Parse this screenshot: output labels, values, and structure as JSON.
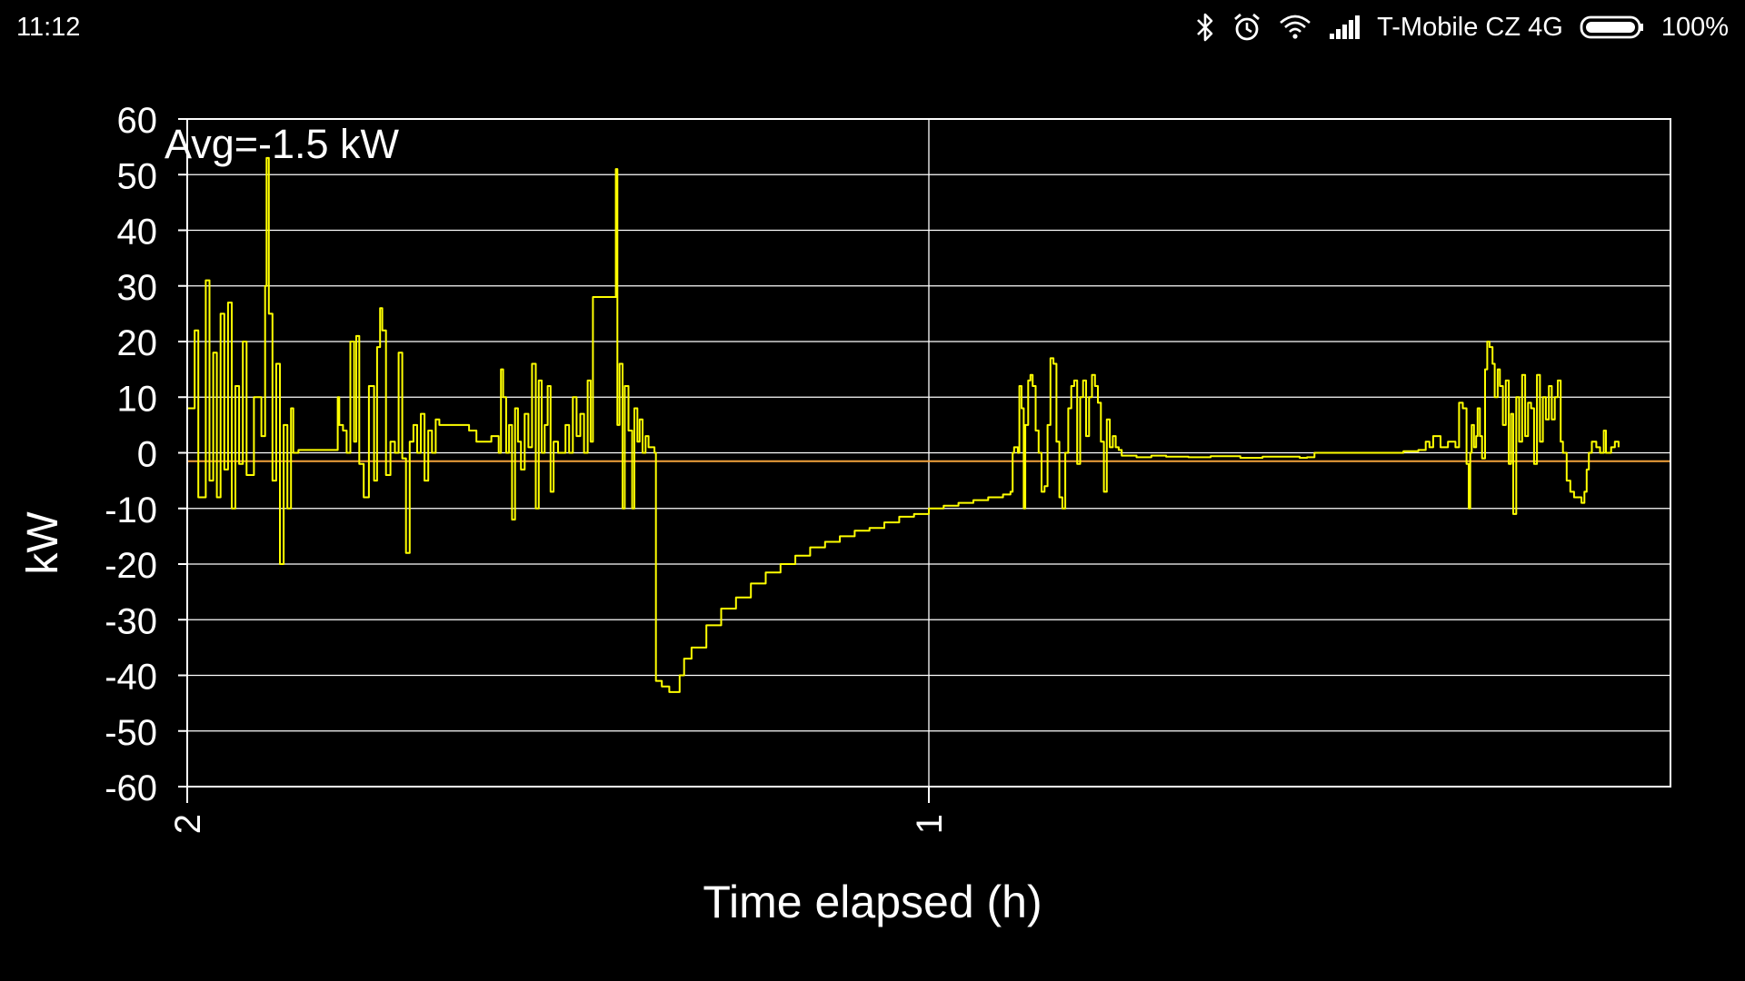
{
  "status_bar": {
    "time": "11:12",
    "carrier": "T-Mobile CZ 4G",
    "battery": "100%",
    "icons": [
      "bluetooth-icon",
      "alarm-icon",
      "wifi-icon",
      "signal-icon",
      "battery-icon"
    ]
  },
  "chart_data": {
    "type": "line",
    "title": "",
    "annotation": "Avg=-1.5 kW",
    "xlabel": "Time elapsed (h)",
    "ylabel": "kW",
    "xlim": [
      2,
      0
    ],
    "ylim": [
      -60,
      60
    ],
    "x_ticks": [
      2,
      1
    ],
    "x_tick_labels": [
      "2",
      "1"
    ],
    "y_ticks": [
      60,
      50,
      40,
      30,
      20,
      10,
      0,
      -10,
      -20,
      -30,
      -40,
      -50,
      -60
    ],
    "y_tick_labels": [
      "60",
      "50",
      "40",
      "30",
      "20",
      "10",
      "0",
      "-10",
      "-20",
      "-30",
      "-40",
      "-50",
      "-60"
    ],
    "grid": true,
    "colors": {
      "series": "#ffff00",
      "average": "#f2a23c",
      "grid": "#ffffff",
      "axis": "#ffffff",
      "background": "#000000"
    },
    "series": [
      {
        "values": [
          [
            2.0,
            8
          ],
          [
            1.99,
            22
          ],
          [
            1.985,
            -8
          ],
          [
            1.975,
            31
          ],
          [
            1.97,
            -5
          ],
          [
            1.965,
            18
          ],
          [
            1.96,
            -8
          ],
          [
            1.955,
            25
          ],
          [
            1.95,
            -3
          ],
          [
            1.945,
            27
          ],
          [
            1.94,
            -10
          ],
          [
            1.935,
            12
          ],
          [
            1.93,
            -2
          ],
          [
            1.925,
            20
          ],
          [
            1.92,
            -4
          ],
          [
            1.91,
            10
          ],
          [
            1.9,
            3
          ],
          [
            1.895,
            30
          ],
          [
            1.893,
            53
          ],
          [
            1.89,
            25
          ],
          [
            1.885,
            -5
          ],
          [
            1.88,
            16
          ],
          [
            1.875,
            -20
          ],
          [
            1.87,
            5
          ],
          [
            1.865,
            -10
          ],
          [
            1.86,
            8
          ],
          [
            1.857,
            0
          ],
          [
            1.85,
            0.5
          ],
          [
            1.8,
            0.5
          ],
          [
            1.797,
            10
          ],
          [
            1.795,
            5
          ],
          [
            1.79,
            4
          ],
          [
            1.785,
            0
          ],
          [
            1.78,
            20
          ],
          [
            1.775,
            2
          ],
          [
            1.772,
            21
          ],
          [
            1.768,
            -2
          ],
          [
            1.762,
            -8
          ],
          [
            1.755,
            12
          ],
          [
            1.748,
            -5
          ],
          [
            1.744,
            19
          ],
          [
            1.74,
            26
          ],
          [
            1.737,
            22
          ],
          [
            1.732,
            -4
          ],
          [
            1.726,
            2
          ],
          [
            1.72,
            0
          ],
          [
            1.715,
            18
          ],
          [
            1.71,
            -1
          ],
          [
            1.705,
            -18
          ],
          [
            1.7,
            2
          ],
          [
            1.695,
            5
          ],
          [
            1.69,
            0
          ],
          [
            1.685,
            7
          ],
          [
            1.68,
            -5
          ],
          [
            1.675,
            4
          ],
          [
            1.67,
            0
          ],
          [
            1.665,
            6
          ],
          [
            1.66,
            5
          ],
          [
            1.64,
            5
          ],
          [
            1.62,
            4
          ],
          [
            1.61,
            2
          ],
          [
            1.6,
            2
          ],
          [
            1.59,
            3
          ],
          [
            1.585,
            3
          ],
          [
            1.58,
            0
          ],
          [
            1.577,
            15
          ],
          [
            1.574,
            10
          ],
          [
            1.57,
            0
          ],
          [
            1.566,
            5
          ],
          [
            1.562,
            -12
          ],
          [
            1.558,
            8
          ],
          [
            1.554,
            2
          ],
          [
            1.55,
            -3
          ],
          [
            1.545,
            7
          ],
          [
            1.54,
            1
          ],
          [
            1.535,
            16
          ],
          [
            1.53,
            -10
          ],
          [
            1.526,
            13
          ],
          [
            1.522,
            0
          ],
          [
            1.518,
            5
          ],
          [
            1.514,
            12
          ],
          [
            1.51,
            -7
          ],
          [
            1.506,
            2
          ],
          [
            1.5,
            0
          ],
          [
            1.49,
            5
          ],
          [
            1.485,
            0
          ],
          [
            1.48,
            10
          ],
          [
            1.475,
            3
          ],
          [
            1.47,
            7
          ],
          [
            1.465,
            0
          ],
          [
            1.46,
            13
          ],
          [
            1.456,
            2
          ],
          [
            1.453,
            28
          ],
          [
            1.422,
            51
          ],
          [
            1.42,
            5
          ],
          [
            1.417,
            16
          ],
          [
            1.413,
            -10
          ],
          [
            1.41,
            12
          ],
          [
            1.405,
            4
          ],
          [
            1.4,
            -10
          ],
          [
            1.397,
            8
          ],
          [
            1.393,
            2
          ],
          [
            1.39,
            6
          ],
          [
            1.386,
            0
          ],
          [
            1.382,
            3
          ],
          [
            1.378,
            1
          ],
          [
            1.37,
            0
          ],
          [
            1.368,
            -41
          ],
          [
            1.36,
            -42
          ],
          [
            1.35,
            -43
          ],
          [
            1.342,
            -43
          ],
          [
            1.336,
            -40
          ],
          [
            1.33,
            -37
          ],
          [
            1.32,
            -35
          ],
          [
            1.3,
            -31
          ],
          [
            1.28,
            -28
          ],
          [
            1.26,
            -26
          ],
          [
            1.24,
            -23.5
          ],
          [
            1.22,
            -21.5
          ],
          [
            1.2,
            -20
          ],
          [
            1.18,
            -18.5
          ],
          [
            1.16,
            -17
          ],
          [
            1.14,
            -16
          ],
          [
            1.12,
            -15
          ],
          [
            1.1,
            -14
          ],
          [
            1.08,
            -13.5
          ],
          [
            1.06,
            -12.5
          ],
          [
            1.04,
            -11.5
          ],
          [
            1.02,
            -11
          ],
          [
            1.0,
            -10
          ],
          [
            0.98,
            -9.5
          ],
          [
            0.96,
            -9
          ],
          [
            0.94,
            -8.5
          ],
          [
            0.92,
            -8
          ],
          [
            0.9,
            -7.5
          ],
          [
            0.89,
            -7
          ],
          [
            0.887,
            0
          ],
          [
            0.885,
            1
          ],
          [
            0.88,
            0
          ],
          [
            0.878,
            12
          ],
          [
            0.875,
            8
          ],
          [
            0.872,
            -10
          ],
          [
            0.87,
            5
          ],
          [
            0.866,
            13
          ],
          [
            0.863,
            14
          ],
          [
            0.86,
            12
          ],
          [
            0.856,
            4
          ],
          [
            0.852,
            0
          ],
          [
            0.848,
            -7
          ],
          [
            0.844,
            -6
          ],
          [
            0.84,
            5
          ],
          [
            0.836,
            17
          ],
          [
            0.832,
            16
          ],
          [
            0.828,
            2
          ],
          [
            0.824,
            -8
          ],
          [
            0.82,
            -10
          ],
          [
            0.816,
            0
          ],
          [
            0.812,
            8
          ],
          [
            0.808,
            12
          ],
          [
            0.804,
            13
          ],
          [
            0.8,
            -2
          ],
          [
            0.796,
            10
          ],
          [
            0.792,
            13
          ],
          [
            0.788,
            3
          ],
          [
            0.784,
            10
          ],
          [
            0.78,
            14
          ],
          [
            0.776,
            12
          ],
          [
            0.772,
            9
          ],
          [
            0.768,
            2
          ],
          [
            0.764,
            -7
          ],
          [
            0.76,
            6
          ],
          [
            0.756,
            1
          ],
          [
            0.752,
            3
          ],
          [
            0.748,
            1
          ],
          [
            0.744,
            0.5
          ],
          [
            0.74,
            -0.5
          ],
          [
            0.72,
            -0.8
          ],
          [
            0.7,
            -0.5
          ],
          [
            0.68,
            -0.7
          ],
          [
            0.65,
            -0.8
          ],
          [
            0.62,
            -0.6
          ],
          [
            0.58,
            -0.9
          ],
          [
            0.55,
            -0.7
          ],
          [
            0.5,
            -0.9
          ],
          [
            0.49,
            -0.8
          ],
          [
            0.48,
            0
          ],
          [
            0.44,
            0
          ],
          [
            0.4,
            0
          ],
          [
            0.36,
            0.3
          ],
          [
            0.34,
            0.5
          ],
          [
            0.33,
            2
          ],
          [
            0.325,
            1
          ],
          [
            0.32,
            3
          ],
          [
            0.31,
            1
          ],
          [
            0.3,
            2
          ],
          [
            0.29,
            1
          ],
          [
            0.285,
            9
          ],
          [
            0.28,
            8
          ],
          [
            0.275,
            -2
          ],
          [
            0.272,
            -10
          ],
          [
            0.27,
            0
          ],
          [
            0.268,
            5
          ],
          [
            0.265,
            1
          ],
          [
            0.262,
            3
          ],
          [
            0.26,
            8
          ],
          [
            0.257,
            3
          ],
          [
            0.254,
            -1
          ],
          [
            0.25,
            15
          ],
          [
            0.247,
            20
          ],
          [
            0.244,
            19
          ],
          [
            0.24,
            16
          ],
          [
            0.237,
            10
          ],
          [
            0.233,
            15
          ],
          [
            0.23,
            12
          ],
          [
            0.226,
            5
          ],
          [
            0.222,
            13
          ],
          [
            0.218,
            -2
          ],
          [
            0.215,
            7
          ],
          [
            0.212,
            -11
          ],
          [
            0.208,
            10
          ],
          [
            0.204,
            2
          ],
          [
            0.2,
            14
          ],
          [
            0.196,
            3
          ],
          [
            0.192,
            9
          ],
          [
            0.188,
            8
          ],
          [
            0.184,
            -2
          ],
          [
            0.18,
            14
          ],
          [
            0.176,
            2
          ],
          [
            0.172,
            10
          ],
          [
            0.168,
            6
          ],
          [
            0.164,
            12
          ],
          [
            0.16,
            6
          ],
          [
            0.156,
            10
          ],
          [
            0.152,
            13
          ],
          [
            0.148,
            2
          ],
          [
            0.145,
            0
          ],
          [
            0.14,
            -5
          ],
          [
            0.135,
            -7
          ],
          [
            0.13,
            -8
          ],
          [
            0.125,
            -8
          ],
          [
            0.12,
            -9
          ],
          [
            0.116,
            -7
          ],
          [
            0.113,
            -3
          ],
          [
            0.11,
            0
          ],
          [
            0.106,
            2
          ],
          [
            0.1,
            1
          ],
          [
            0.095,
            0
          ],
          [
            0.09,
            4
          ],
          [
            0.087,
            0
          ],
          [
            0.08,
            1
          ],
          [
            0.075,
            2
          ],
          [
            0.07,
            1
          ]
        ]
      }
    ],
    "average_line": {
      "value": -1.5
    }
  }
}
